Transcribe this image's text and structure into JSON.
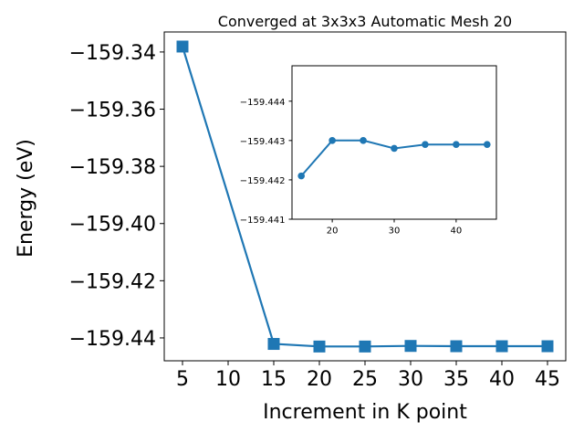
{
  "chart_data": {
    "type": "line",
    "title": "Converged at 3x3x3 Automatic Mesh 20",
    "xlabel": "Increment in K point",
    "ylabel": "Energy (eV)",
    "x": [
      5,
      15,
      20,
      25,
      30,
      35,
      40,
      45
    ],
    "series": [
      {
        "values": [
          -159.3381,
          -159.4421,
          -159.443,
          -159.443,
          -159.4428,
          -159.4429,
          -159.4429,
          -159.4429
        ]
      }
    ],
    "xlim": [
      3,
      47
    ],
    "ylim": [
      -159.448,
      -159.333
    ],
    "xticks": [
      5,
      10,
      15,
      20,
      25,
      30,
      35,
      40,
      45
    ],
    "yticks": [
      -159.34,
      -159.36,
      -159.38,
      -159.4,
      -159.42,
      -159.44
    ],
    "ytick_labels": [
      "−159.34",
      "−159.36",
      "−159.38",
      "−159.40",
      "−159.42",
      "−159.44"
    ],
    "marker": "square",
    "inset": {
      "type": "line",
      "x": [
        15,
        20,
        25,
        30,
        35,
        40,
        45
      ],
      "values": [
        -159.4421,
        -159.443,
        -159.443,
        -159.4428,
        -159.4429,
        -159.4429,
        -159.4429
      ],
      "xlim": [
        13.5,
        46.5
      ],
      "ylim": [
        -159.441,
        -159.4449
      ],
      "xticks": [
        20,
        30,
        40
      ],
      "yticks": [
        -159.444,
        -159.443,
        -159.442,
        -159.441
      ],
      "ytick_labels": [
        "−159.444",
        "−159.443",
        "−159.442",
        "−159.441"
      ],
      "marker": "circle"
    },
    "colors": {
      "series": "#1f77b4",
      "axes": "#000000"
    }
  }
}
